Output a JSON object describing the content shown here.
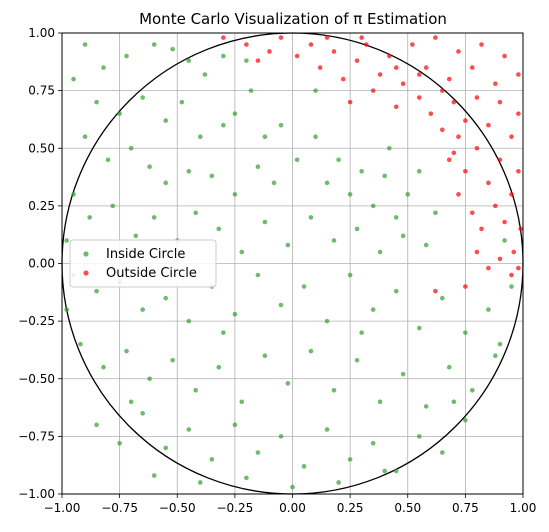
{
  "chart_data": {
    "type": "scatter",
    "title": "Monte Carlo Visualization of π Estimation",
    "xlabel": "",
    "ylabel": "",
    "xlim": [
      -1.0,
      1.0
    ],
    "ylim": [
      -1.0,
      1.0
    ],
    "aspect": "equal",
    "grid": true,
    "legend_position": "center-left",
    "xticks": [
      "−1.00",
      "−0.75",
      "−0.50",
      "−0.25",
      "0.00",
      "0.25",
      "0.50",
      "0.75",
      "1.00"
    ],
    "yticks": [
      "−1.00",
      "−0.75",
      "−0.50",
      "−0.25",
      "0.00",
      "0.25",
      "0.50",
      "0.75",
      "1.00"
    ],
    "xtick_values": [
      -1.0,
      -0.75,
      -0.5,
      -0.25,
      0.0,
      0.25,
      0.5,
      0.75,
      1.0
    ],
    "ytick_values": [
      -1.0,
      -0.75,
      -0.5,
      -0.25,
      0.0,
      0.25,
      0.5,
      0.75,
      1.0
    ],
    "circle": {
      "center": [
        0,
        0
      ],
      "radius": 1,
      "color": "#000000"
    },
    "series": [
      {
        "name": "Inside Circle",
        "color": "#2ca02c",
        "points": [
          [
            -0.9,
            0.95
          ],
          [
            -0.82,
            0.85
          ],
          [
            -0.72,
            0.9
          ],
          [
            -0.6,
            0.95
          ],
          [
            -0.52,
            0.93
          ],
          [
            -0.45,
            0.88
          ],
          [
            -0.38,
            0.82
          ],
          [
            -0.3,
            0.9
          ],
          [
            -0.95,
            0.8
          ],
          [
            -0.85,
            0.7
          ],
          [
            -0.75,
            0.65
          ],
          [
            -0.65,
            0.72
          ],
          [
            -0.55,
            0.62
          ],
          [
            -0.48,
            0.7
          ],
          [
            -0.4,
            0.55
          ],
          [
            -0.3,
            0.6
          ],
          [
            -0.25,
            0.65
          ],
          [
            -0.18,
            0.75
          ],
          [
            -0.12,
            0.55
          ],
          [
            -0.05,
            0.6
          ],
          [
            -0.9,
            0.55
          ],
          [
            -0.8,
            0.45
          ],
          [
            -0.7,
            0.5
          ],
          [
            -0.62,
            0.42
          ],
          [
            -0.55,
            0.35
          ],
          [
            -0.45,
            0.4
          ],
          [
            -0.35,
            0.38
          ],
          [
            -0.25,
            0.3
          ],
          [
            -0.15,
            0.42
          ],
          [
            -0.08,
            0.35
          ],
          [
            0.02,
            0.45
          ],
          [
            0.1,
            0.55
          ],
          [
            0.15,
            0.35
          ],
          [
            0.2,
            0.45
          ],
          [
            0.25,
            0.3
          ],
          [
            0.3,
            0.4
          ],
          [
            0.35,
            0.25
          ],
          [
            0.4,
            0.38
          ],
          [
            0.45,
            0.2
          ],
          [
            0.5,
            0.3
          ],
          [
            -0.95,
            0.3
          ],
          [
            -0.88,
            0.2
          ],
          [
            -0.78,
            0.25
          ],
          [
            -0.68,
            0.12
          ],
          [
            -0.6,
            0.2
          ],
          [
            -0.5,
            0.1
          ],
          [
            -0.42,
            0.22
          ],
          [
            -0.32,
            0.15
          ],
          [
            -0.22,
            0.05
          ],
          [
            -0.12,
            0.18
          ],
          [
            -0.02,
            0.08
          ],
          [
            0.08,
            0.2
          ],
          [
            0.18,
            0.1
          ],
          [
            0.28,
            0.15
          ],
          [
            0.38,
            0.05
          ],
          [
            0.48,
            0.12
          ],
          [
            0.58,
            0.08
          ],
          [
            0.62,
            0.22
          ],
          [
            0.55,
            0.4
          ],
          [
            0.42,
            0.5
          ],
          [
            -0.95,
            -0.05
          ],
          [
            -0.85,
            -0.12
          ],
          [
            -0.75,
            -0.08
          ],
          [
            -0.65,
            -0.2
          ],
          [
            -0.55,
            -0.15
          ],
          [
            -0.45,
            -0.25
          ],
          [
            -0.35,
            -0.1
          ],
          [
            -0.25,
            -0.22
          ],
          [
            -0.15,
            -0.05
          ],
          [
            -0.05,
            -0.18
          ],
          [
            0.05,
            -0.1
          ],
          [
            0.15,
            -0.25
          ],
          [
            0.25,
            -0.05
          ],
          [
            0.35,
            -0.2
          ],
          [
            0.45,
            -0.12
          ],
          [
            0.55,
            -0.28
          ],
          [
            0.65,
            -0.15
          ],
          [
            0.75,
            -0.3
          ],
          [
            0.85,
            -0.2
          ],
          [
            0.9,
            -0.35
          ],
          [
            -0.92,
            -0.35
          ],
          [
            -0.82,
            -0.45
          ],
          [
            -0.72,
            -0.38
          ],
          [
            -0.62,
            -0.5
          ],
          [
            -0.52,
            -0.42
          ],
          [
            -0.42,
            -0.55
          ],
          [
            -0.32,
            -0.45
          ],
          [
            -0.22,
            -0.6
          ],
          [
            -0.12,
            -0.4
          ],
          [
            -0.02,
            -0.52
          ],
          [
            0.08,
            -0.38
          ],
          [
            0.18,
            -0.55
          ],
          [
            0.28,
            -0.42
          ],
          [
            0.38,
            -0.6
          ],
          [
            0.48,
            -0.48
          ],
          [
            0.58,
            -0.62
          ],
          [
            0.68,
            -0.45
          ],
          [
            0.78,
            -0.55
          ],
          [
            0.88,
            -0.4
          ],
          [
            -0.85,
            -0.7
          ],
          [
            -0.75,
            -0.78
          ],
          [
            -0.65,
            -0.65
          ],
          [
            -0.55,
            -0.8
          ],
          [
            -0.45,
            -0.72
          ],
          [
            -0.35,
            -0.85
          ],
          [
            -0.25,
            -0.7
          ],
          [
            -0.15,
            -0.82
          ],
          [
            -0.05,
            -0.75
          ],
          [
            0.05,
            -0.88
          ],
          [
            0.15,
            -0.72
          ],
          [
            0.25,
            -0.85
          ],
          [
            0.35,
            -0.78
          ],
          [
            0.45,
            -0.9
          ],
          [
            0.55,
            -0.75
          ],
          [
            0.65,
            -0.82
          ],
          [
            0.75,
            -0.68
          ],
          [
            -0.6,
            -0.92
          ],
          [
            -0.4,
            -0.95
          ],
          [
            -0.2,
            -0.93
          ],
          [
            0.0,
            -0.97
          ],
          [
            0.2,
            -0.95
          ],
          [
            0.4,
            -0.9
          ],
          [
            -0.98,
            -0.2
          ],
          [
            0.95,
            -0.1
          ],
          [
            0.92,
            0.1
          ],
          [
            -0.98,
            0.1
          ],
          [
            0.7,
            -0.6
          ],
          [
            -0.7,
            -0.6
          ],
          [
            0.1,
            0.75
          ],
          [
            -0.2,
            0.88
          ],
          [
            0.3,
            -0.3
          ],
          [
            -0.3,
            -0.3
          ]
        ]
      },
      {
        "name": "Outside Circle",
        "color": "#ff0000",
        "points": [
          [
            -0.3,
            0.98
          ],
          [
            -0.2,
            0.95
          ],
          [
            -0.15,
            0.88
          ],
          [
            -0.1,
            0.92
          ],
          [
            -0.05,
            0.98
          ],
          [
            0.02,
            0.9
          ],
          [
            0.08,
            0.95
          ],
          [
            0.12,
            0.85
          ],
          [
            0.18,
            0.92
          ],
          [
            0.22,
            0.8
          ],
          [
            0.28,
            0.88
          ],
          [
            0.32,
            0.95
          ],
          [
            0.38,
            0.82
          ],
          [
            0.42,
            0.9
          ],
          [
            0.48,
            0.78
          ],
          [
            0.52,
            0.95
          ],
          [
            0.58,
            0.85
          ],
          [
            0.62,
            0.98
          ],
          [
            0.68,
            0.8
          ],
          [
            0.72,
            0.92
          ],
          [
            0.78,
            0.85
          ],
          [
            0.82,
            0.95
          ],
          [
            0.88,
            0.78
          ],
          [
            0.92,
            0.9
          ],
          [
            0.98,
            0.82
          ],
          [
            0.25,
            0.7
          ],
          [
            0.35,
            0.75
          ],
          [
            0.45,
            0.68
          ],
          [
            0.55,
            0.72
          ],
          [
            0.6,
            0.65
          ],
          [
            0.65,
            0.58
          ],
          [
            0.7,
            0.7
          ],
          [
            0.75,
            0.62
          ],
          [
            0.8,
            0.72
          ],
          [
            0.85,
            0.6
          ],
          [
            0.9,
            0.7
          ],
          [
            0.95,
            0.55
          ],
          [
            0.98,
            0.65
          ],
          [
            0.7,
            0.48
          ],
          [
            0.75,
            0.4
          ],
          [
            0.8,
            0.5
          ],
          [
            0.85,
            0.35
          ],
          [
            0.9,
            0.45
          ],
          [
            0.95,
            0.3
          ],
          [
            0.98,
            0.4
          ],
          [
            0.72,
            0.3
          ],
          [
            0.78,
            0.22
          ],
          [
            0.82,
            0.15
          ],
          [
            0.88,
            0.25
          ],
          [
            0.92,
            0.18
          ],
          [
            0.96,
            0.05
          ],
          [
            0.99,
            0.15
          ],
          [
            0.8,
            0.05
          ],
          [
            0.85,
            -0.02
          ],
          [
            0.9,
            0.02
          ],
          [
            0.95,
            -0.05
          ],
          [
            0.75,
            -0.1
          ],
          [
            0.62,
            -0.12
          ],
          [
            0.98,
            -0.02
          ],
          [
            0.65,
            0.75
          ],
          [
            0.55,
            0.82
          ],
          [
            0.45,
            0.85
          ],
          [
            0.3,
            0.98
          ],
          [
            0.15,
            0.98
          ],
          [
            0.68,
            0.45
          ],
          [
            0.72,
            0.55
          ]
        ]
      }
    ]
  }
}
